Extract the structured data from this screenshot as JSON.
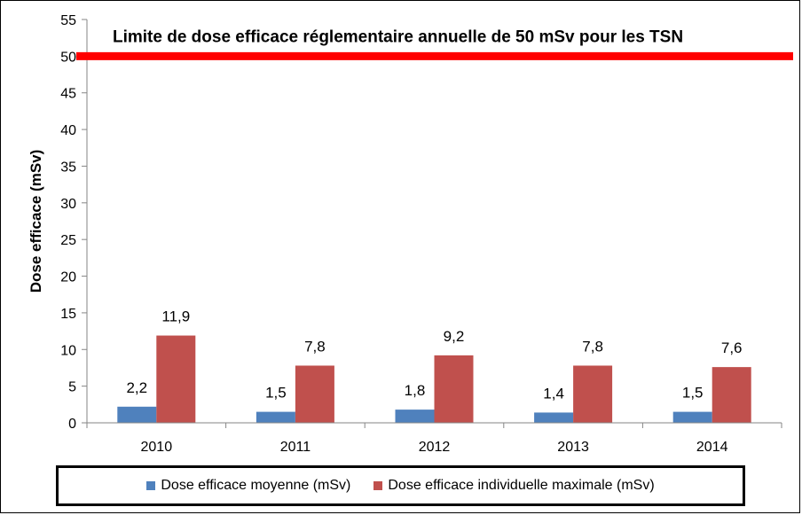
{
  "chart_data": {
    "type": "bar",
    "title": "",
    "ylabel": "Dose efficace  (mSv)",
    "xlabel": "",
    "categories": [
      "2010",
      "2011",
      "2012",
      "2013",
      "2014"
    ],
    "ylim": [
      0,
      55
    ],
    "yticks": [
      0,
      5,
      10,
      15,
      20,
      25,
      30,
      35,
      40,
      45,
      50,
      55
    ],
    "series": [
      {
        "name": "Dose efficace moyenne (mSv)",
        "color": "#4f81bd",
        "values": [
          2.2,
          1.5,
          1.8,
          1.4,
          1.5
        ],
        "labels": [
          "2,2",
          "1,5",
          "1,8",
          "1,4",
          "1,5"
        ]
      },
      {
        "name": "Dose efficace individuelle maximale (mSv)",
        "color": "#c0504d",
        "values": [
          11.9,
          7.8,
          9.2,
          7.8,
          7.6
        ],
        "labels": [
          "11,9",
          "7,8",
          "9,2",
          "7,8",
          "7,6"
        ]
      }
    ],
    "reference_line": {
      "value": 50,
      "color": "#ff0000",
      "label": "Limite de dose efficace réglementaire annuelle de 50 mSv pour  les TSN"
    },
    "grid": false,
    "legend_position": "bottom"
  }
}
